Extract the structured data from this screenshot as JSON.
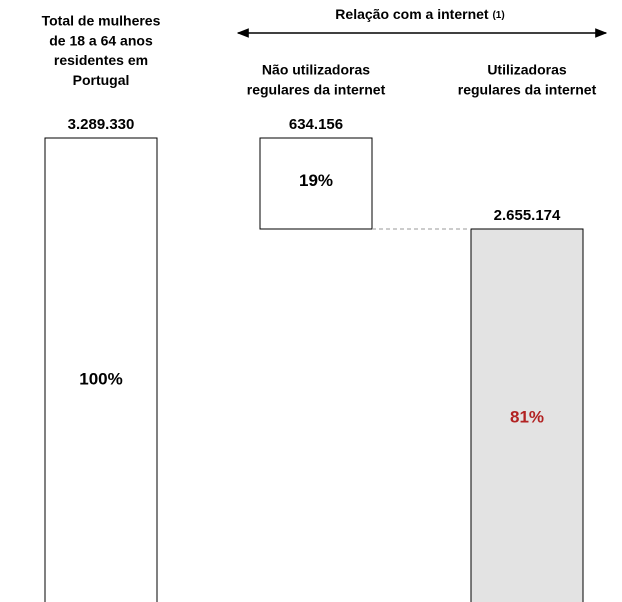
{
  "chart_data": {
    "type": "waterfall",
    "header": "Relação com a internet",
    "header_note": "(1)",
    "categories": [
      [
        "Total de mulheres",
        "de 18 a 64 anos",
        "residentes em",
        "Portugal"
      ],
      [
        "Não utilizadoras",
        "regulares da internet"
      ],
      [
        "Utilizadoras",
        "regulares da internet"
      ]
    ],
    "values": [
      3289330,
      634156,
      2655174
    ],
    "value_labels": [
      "3.289.330",
      "634.156",
      "2.655.174"
    ],
    "share_labels": [
      "100%",
      "19%",
      "81%"
    ],
    "colors": [
      "#ffffff",
      "#ffffff",
      "#e3e3e3"
    ],
    "share_colors": [
      "#000000",
      "#000000",
      "#b22222"
    ]
  }
}
